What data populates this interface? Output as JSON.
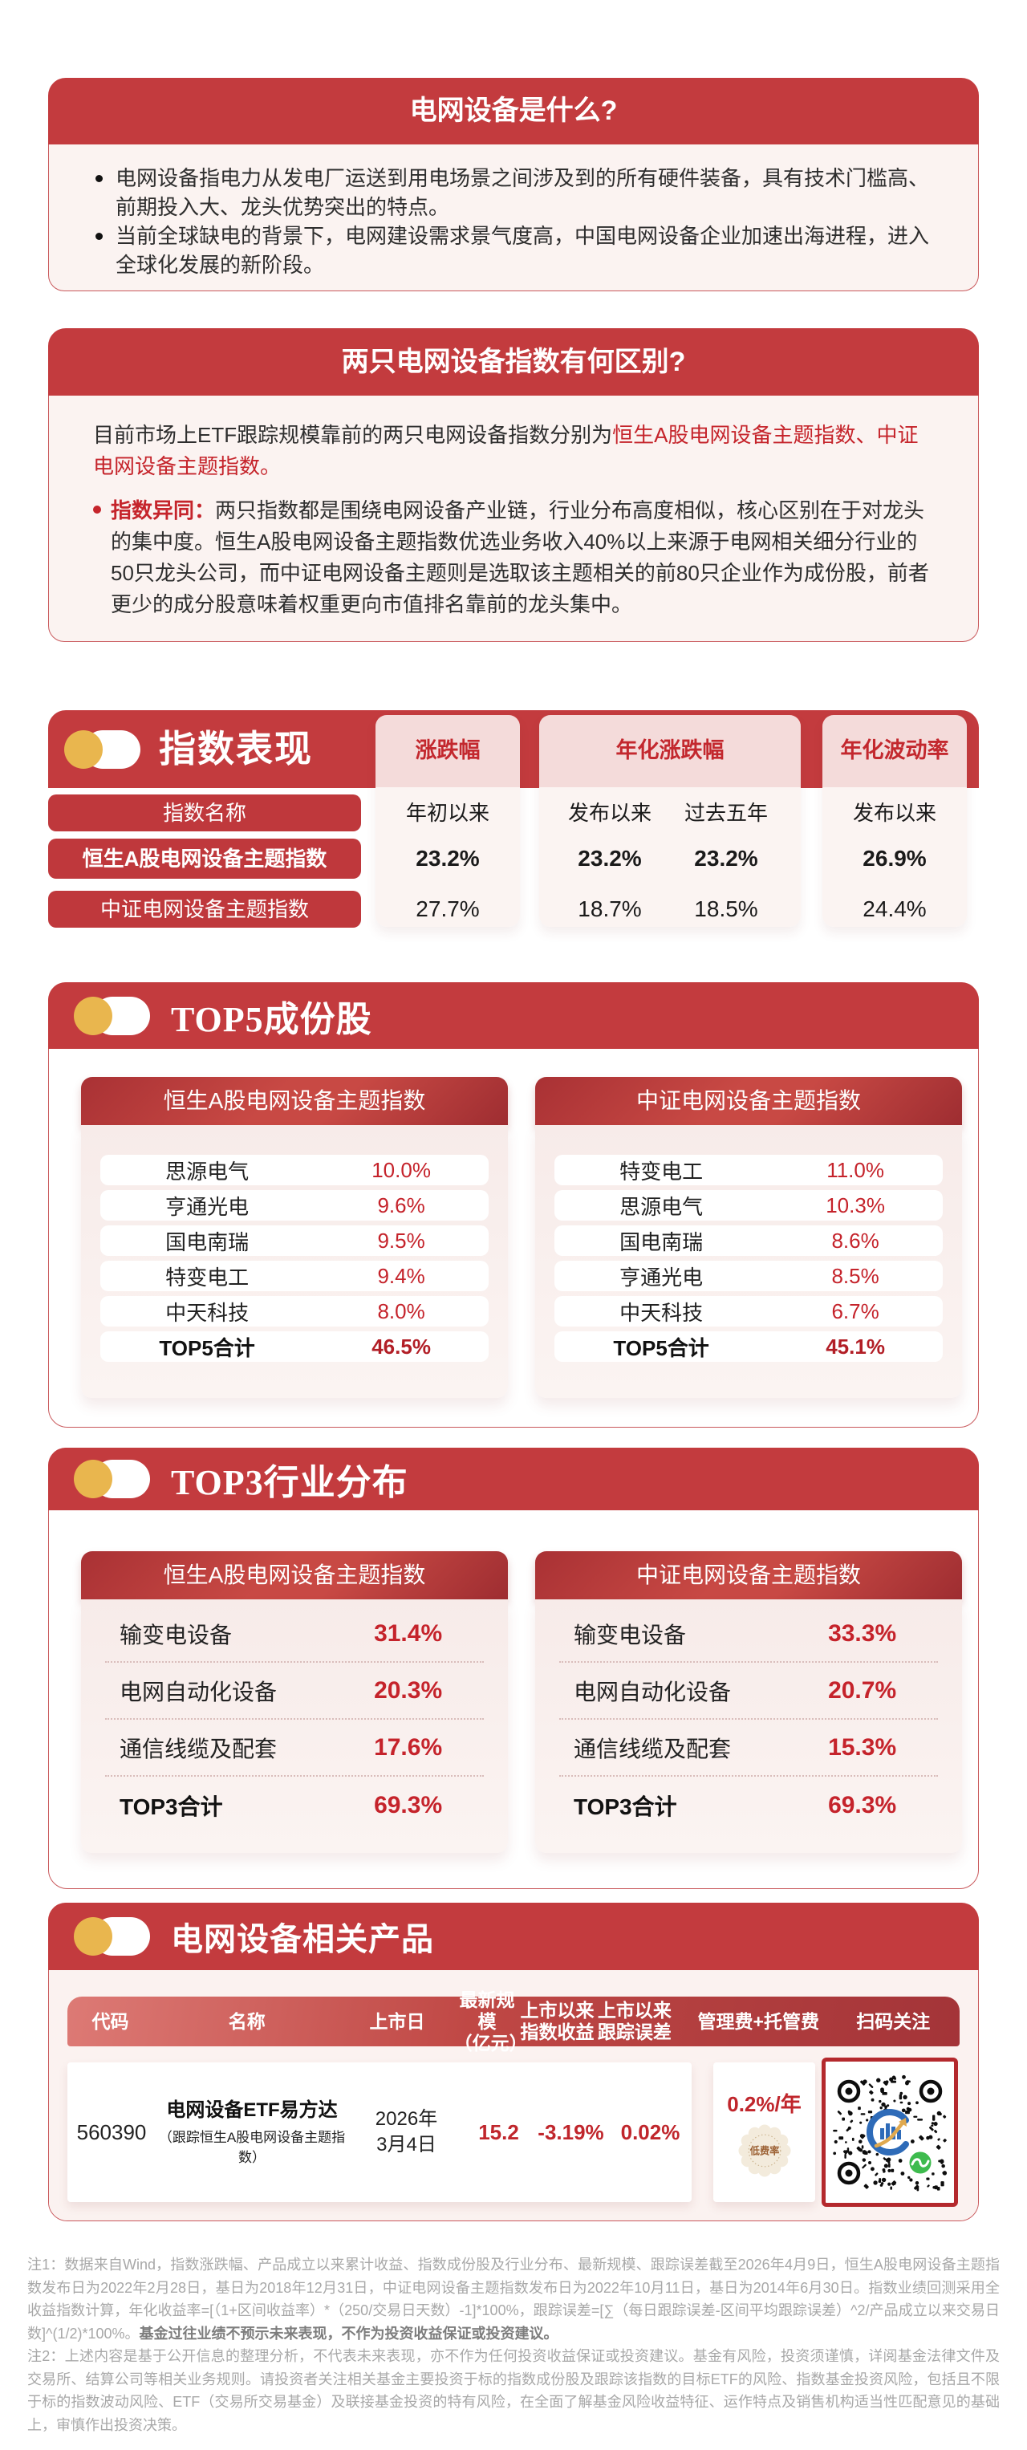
{
  "colors": {
    "band_red": "#C33B3E",
    "accent_red": "#C5242B",
    "pill_red": "#BF383C",
    "body_pink": "#FBF3F1",
    "badge_gold": "#C9B089",
    "qr_border": "#B4292D",
    "wechat_green": "#3EBB4E",
    "logo_blue": "#2E6BB8"
  },
  "what": {
    "title": "电网设备是什么?",
    "bullets": [
      "电网设备指电力从发电厂运送到用电场景之间涉及到的所有硬件装备，具有技术门槛高、前期投入大、龙头优势突出的特点。",
      "当前全球缺电的背景下，电网建设需求景气度高，中国电网设备企业加速出海进程，进入全球化发展的新阶段。"
    ]
  },
  "diff": {
    "title": "两只电网设备指数有何区别?",
    "intro_prefix": "目前市场上ETF跟踪规模靠前的两只电网设备指数分别为",
    "intro_red": "恒生A股电网设备主题指数、中证电网设备主题指数。",
    "point_label": "指数异同：",
    "point_text": "两只指数都是围绕电网设备产业链，行业分布高度相似，核心区别在于对龙头的集中度。恒生A股电网设备主题指数优选业务收入40%以上来源于电网相关细分行业的50只龙头公司，而中证电网设备主题则是选取该主题相关的前80只企业作为成份股，前者更少的成分股意味着权重更向市值排名靠前的龙头集中。"
  },
  "performance": {
    "title": "指数表现",
    "col_groups": [
      "涨跌幅",
      "年化涨跌幅",
      "年化波动率"
    ],
    "sub_headers": [
      "年初以来",
      "发布以来",
      "过去五年",
      "发布以来"
    ],
    "row_label_header": "指数名称",
    "rows": [
      {
        "name": "恒生A股电网设备主题指数",
        "values": [
          "23.2%",
          "23.2%",
          "23.2%",
          "26.9%"
        ]
      },
      {
        "name": "中证电网设备主题指数",
        "values": [
          "27.7%",
          "18.7%",
          "18.5%",
          "24.4%"
        ]
      }
    ]
  },
  "top5": {
    "title_prefix": "TOP5",
    "title_suffix": "成份股",
    "cards": [
      {
        "header": "恒生A股电网设备主题指数",
        "rows": [
          [
            "思源电气",
            "10.0%"
          ],
          [
            "亨通光电",
            "9.6%"
          ],
          [
            "国电南瑞",
            "9.5%"
          ],
          [
            "特变电工",
            "9.4%"
          ],
          [
            "中天科技",
            "8.0%"
          ]
        ],
        "total_label": "TOP5合计",
        "total_value": "46.5%"
      },
      {
        "header": "中证电网设备主题指数",
        "rows": [
          [
            "特变电工",
            "11.0%"
          ],
          [
            "思源电气",
            "10.3%"
          ],
          [
            "国电南瑞",
            "8.6%"
          ],
          [
            "亨通光电",
            "8.5%"
          ],
          [
            "中天科技",
            "6.7%"
          ]
        ],
        "total_label": "TOP5合计",
        "total_value": "45.1%"
      }
    ]
  },
  "top3": {
    "title_prefix": "TOP3",
    "title_suffix": "行业分布",
    "cards": [
      {
        "header": "恒生A股电网设备主题指数",
        "rows": [
          [
            "输变电设备",
            "31.4%"
          ],
          [
            "电网自动化设备",
            "20.3%"
          ],
          [
            "通信线缆及配套",
            "17.6%"
          ]
        ],
        "total_label": "TOP3合计",
        "total_value": "69.3%"
      },
      {
        "header": "中证电网设备主题指数",
        "rows": [
          [
            "输变电设备",
            "33.3%"
          ],
          [
            "电网自动化设备",
            "20.7%"
          ],
          [
            "通信线缆及配套",
            "15.3%"
          ]
        ],
        "total_label": "TOP3合计",
        "total_value": "69.3%"
      }
    ]
  },
  "products": {
    "title": "电网设备相关产品",
    "headers": [
      "代码",
      "名称",
      "上市日",
      "最新规模\n（亿元）",
      "上市以来\n指数收益",
      "上市以来\n跟踪误差",
      "管理费+托管费",
      "扫码关注"
    ],
    "row": {
      "code": "560390",
      "name": "电网设备ETF易方达",
      "name_sub": "（跟踪恒生A股电网设备主题指数）",
      "date": "2026年\n3月4日",
      "scale": "15.2",
      "return": "-3.19%",
      "error": "0.02%",
      "fee": "0.2%/年",
      "badge": "低费率"
    }
  },
  "footnotes": {
    "note1": "注1：数据来自Wind，指数涨跌幅、产品成立以来累计收益、指数成份股及行业分布、最新规模、跟踪误差截至2026年4月9日，恒生A股电网设备主题指数发布日为2022年2月28日，基日为2018年12月31日，中证电网设备主题指数发布日为2022年10月11日，基日为2014年6月30日。指数业绩回测采用全收益指数计算，年化收益率=[（1+区间收益率）*（250/交易日天数）-1]*100%，跟踪误差=[∑（每日跟踪误差-区间平均跟踪误差）^2/产品成立以来交易日数]^(1/2)*100%。",
    "note1_bold": "基金过往业绩不预示未来表现，不作为投资收益保证或投资建议。",
    "note2": "注2：上述内容是基于公开信息的整理分析，不代表未来表现，亦不作为任何投资收益保证或投资建议。基金有风险，投资须谨慎，详阅基金法律文件及交易所、结算公司等相关业务规则。请投资者关注相关基金主要投资于标的指数成份股及跟踪该指数的目标ETF的风险、指数基金投资风险，包括且不限于标的指数波动风险、ETF（交易所交易基金）及联接基金投资的特有风险，在全面了解基金风险收益特征、运作特点及销售机构适当性匹配意见的基础上，审慎作出投资决策。"
  }
}
